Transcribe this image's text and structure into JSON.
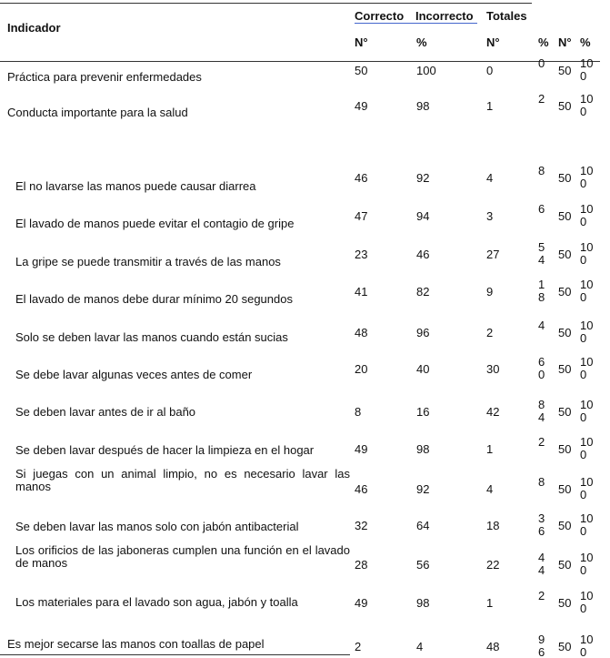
{
  "header": {
    "indicator": "Indicador",
    "groups": [
      "Correcto",
      "Incorrecto",
      "Totales"
    ],
    "subheaders": [
      "N°",
      "%",
      "N°",
      "%",
      "N°",
      "%"
    ]
  },
  "table": {
    "rows": [
      [
        "Práctica para prevenir enfermedades",
        50,
        100,
        0,
        0,
        50,
        100
      ],
      [
        "Conducta importante para la salud",
        49,
        98,
        1,
        2,
        50,
        100
      ],
      [
        "El no lavarse las manos puede causar diarrea",
        46,
        92,
        4,
        8,
        50,
        100
      ],
      [
        "El lavado de manos puede evitar el contagio de gripe",
        47,
        94,
        3,
        6,
        50,
        100
      ],
      [
        "La gripe se puede transmitir a través de las manos",
        23,
        46,
        27,
        54,
        50,
        100
      ],
      [
        "El lavado de manos debe durar mínimo 20 segundos",
        41,
        82,
        9,
        18,
        50,
        100
      ],
      [
        "Solo se deben lavar las manos cuando están sucias",
        48,
        96,
        2,
        4,
        50,
        100
      ],
      [
        "Se debe lavar algunas veces antes de comer",
        20,
        40,
        30,
        60,
        50,
        100
      ],
      [
        "Se deben lavar antes de ir al baño",
        8,
        16,
        42,
        84,
        50,
        100
      ],
      [
        "Se deben lavar después de hacer la limpieza en el hogar",
        49,
        98,
        1,
        2,
        50,
        100
      ],
      [
        "Si juegas con un animal limpio, no es necesario lavar las manos",
        46,
        92,
        4,
        8,
        50,
        100
      ],
      [
        "Se deben lavar las manos solo con jabón antibacterial",
        32,
        64,
        18,
        36,
        50,
        100
      ],
      [
        "Los orificios de las jaboneras cumplen una función en el lavado de manos",
        28,
        56,
        22,
        44,
        50,
        100
      ],
      [
        "Los materiales para el lavado son agua, jabón y toalla",
        49,
        98,
        1,
        2,
        50,
        100
      ],
      [
        "Es mejor secarse las manos con toallas de papel",
        2,
        4,
        48,
        96,
        50,
        100
      ]
    ]
  }
}
